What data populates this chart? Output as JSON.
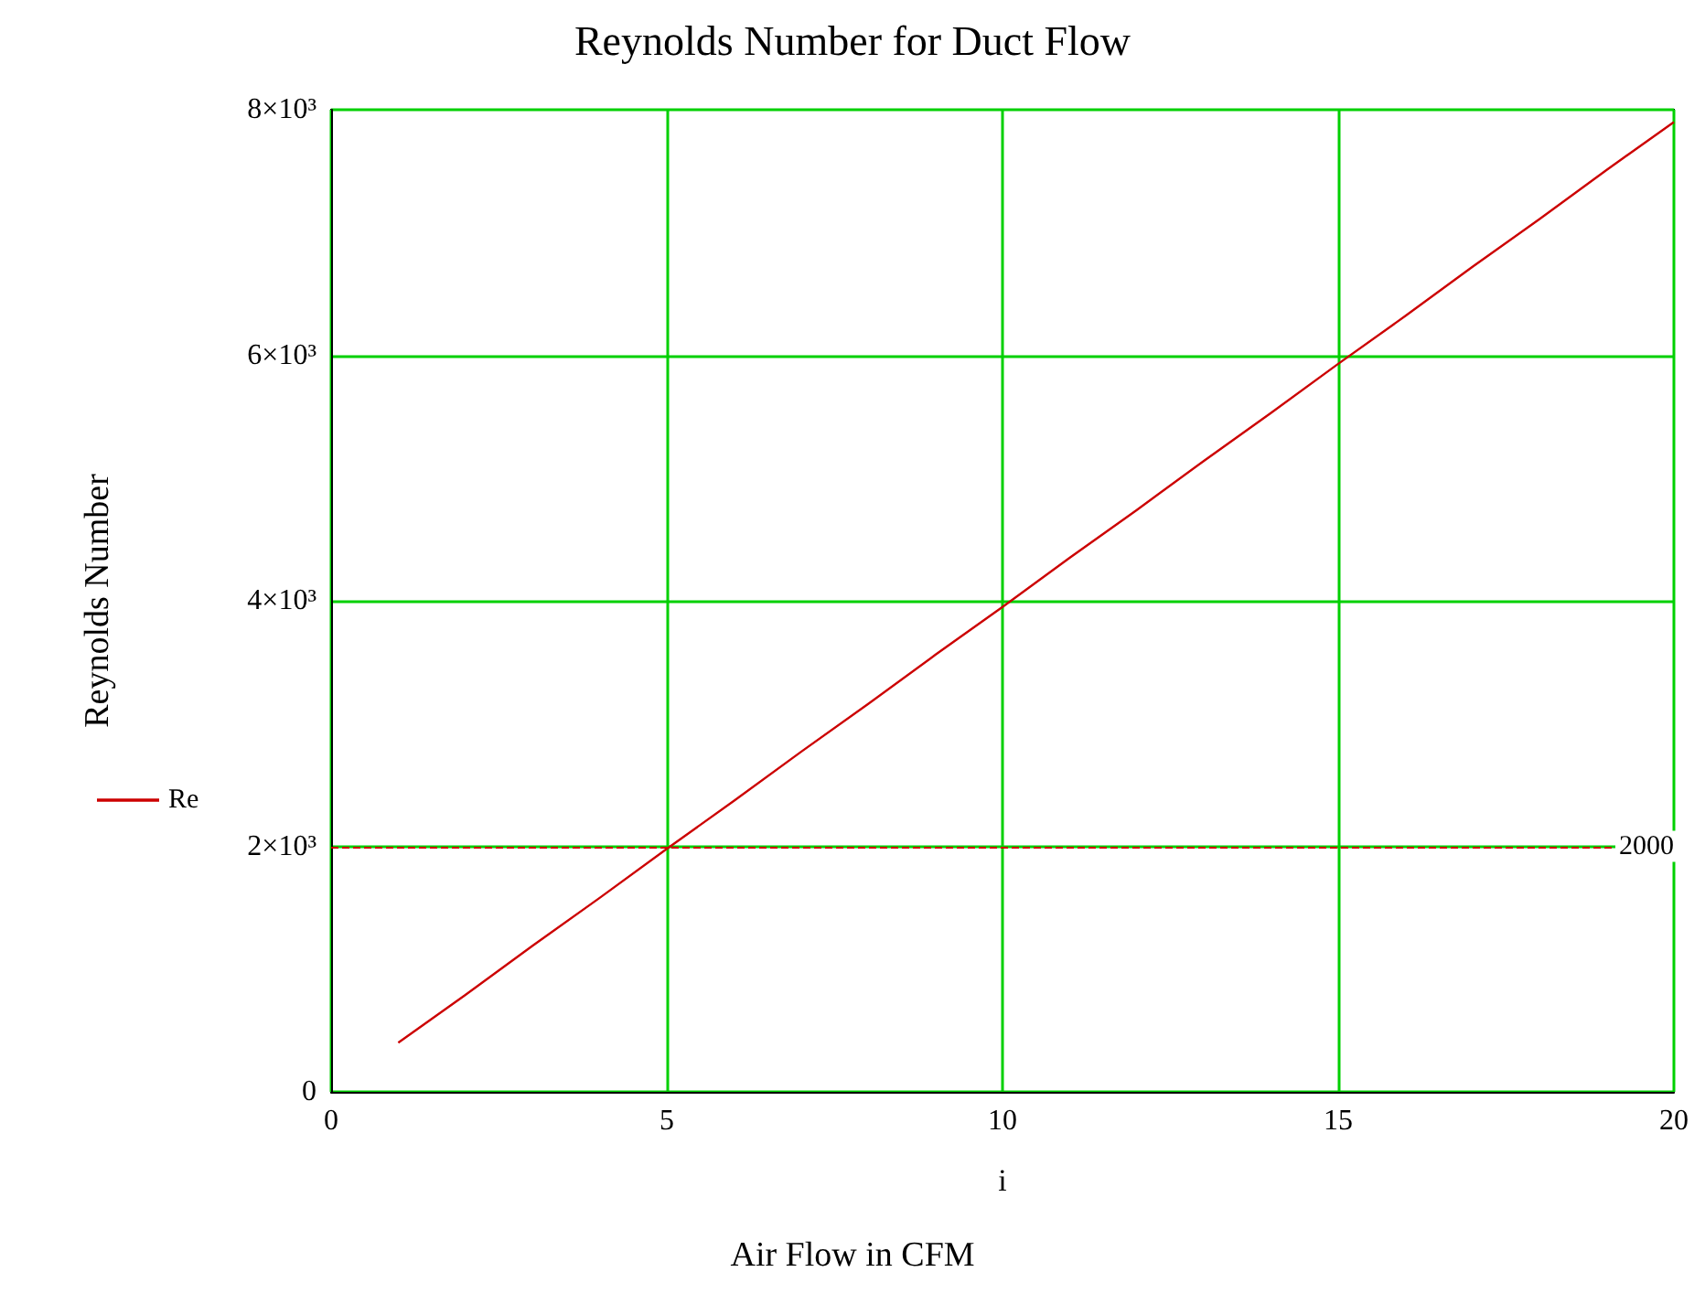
{
  "chart_data": {
    "type": "line",
    "title": "Reynolds Number for Duct Flow",
    "xlabel": "i",
    "ylabel": "Reynolds Number",
    "annotations": [
      "Air Flow in CFM"
    ],
    "x": [
      1,
      2,
      3,
      4,
      5,
      6,
      7,
      8,
      9,
      10,
      11,
      12,
      13,
      14,
      15,
      16,
      17,
      18,
      19,
      20
    ],
    "series": [
      {
        "name": "Re",
        "color": "#cc0000",
        "values": [
          400,
          790,
          1190,
          1580,
          1980,
          2370,
          2770,
          3160,
          3560,
          3950,
          4350,
          4740,
          5140,
          5530,
          5930,
          6320,
          6720,
          7110,
          7510,
          7900
        ]
      }
    ],
    "xlim": [
      0,
      20
    ],
    "xticks": [
      0,
      5,
      10,
      15,
      20
    ],
    "ylim": [
      0,
      8000
    ],
    "yticks": [
      0,
      {
        "value": 2000,
        "label": "2×10³"
      },
      {
        "value": 4000,
        "label": "4×10³"
      },
      {
        "value": 6000,
        "label": "6×10³"
      },
      {
        "value": 8000,
        "label": "8×10³"
      }
    ],
    "ref_lines": [
      {
        "axis": "y",
        "value": 2000,
        "label": "2000",
        "color": "#cc0000",
        "line_style": "dashed"
      }
    ],
    "grid": true,
    "legend": "left"
  }
}
